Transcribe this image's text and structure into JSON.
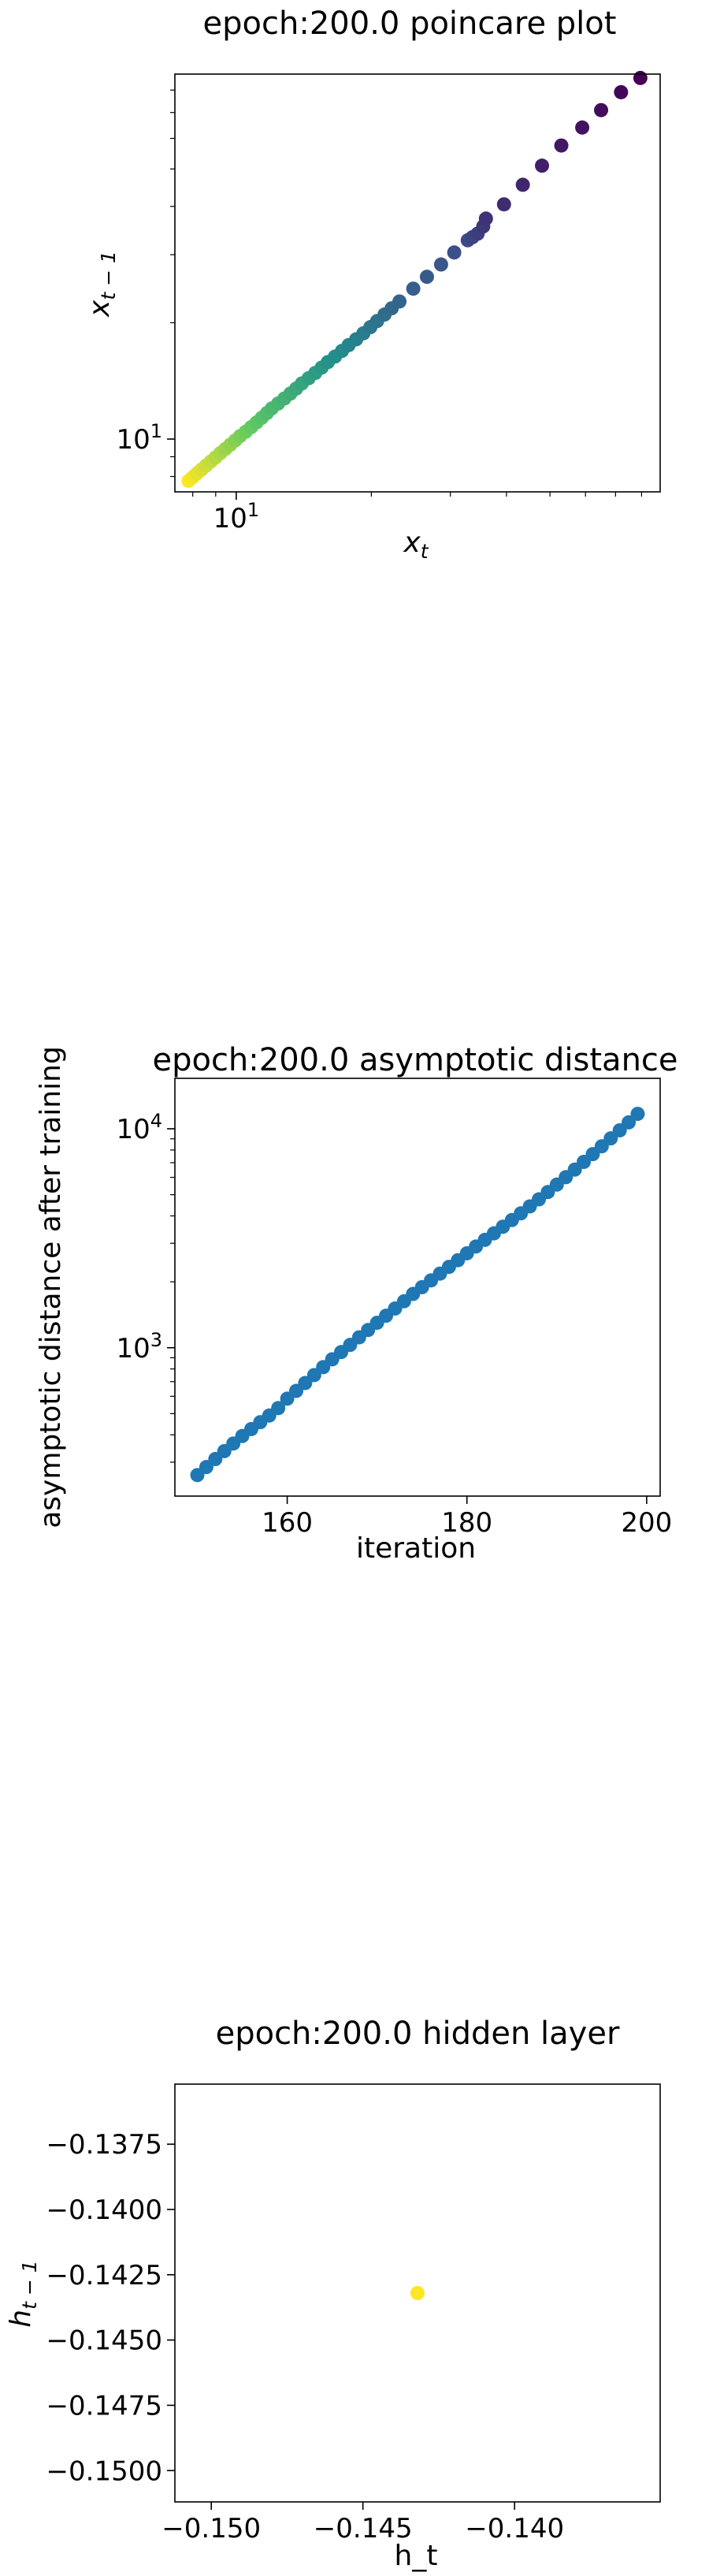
{
  "figure": {
    "background": "#ffffff"
  },
  "chart_data": [
    {
      "type": "scatter",
      "title": "epoch:200.0 poincare plot",
      "xlabel": "x_t",
      "ylabel": "x_{t-1}",
      "xscale": "log",
      "yscale": "log",
      "xlim": [
        7.3,
        88
      ],
      "ylim": [
        7.3,
        88
      ],
      "x_ticks": [
        {
          "value": 10,
          "label": "10",
          "exp": "1"
        }
      ],
      "y_ticks": [
        {
          "value": 10,
          "label": "10",
          "exp": "1"
        }
      ],
      "grid": false,
      "legend": "none",
      "colormap": "viridis",
      "points": [
        {
          "x": 7.83,
          "y": 7.8
        },
        {
          "x": 8.0,
          "y": 7.97
        },
        {
          "x": 8.18,
          "y": 8.15
        },
        {
          "x": 8.37,
          "y": 8.34
        },
        {
          "x": 8.57,
          "y": 8.54
        },
        {
          "x": 8.78,
          "y": 8.75
        },
        {
          "x": 9.0,
          "y": 8.97
        },
        {
          "x": 9.22,
          "y": 9.2
        },
        {
          "x": 9.46,
          "y": 9.43
        },
        {
          "x": 9.7,
          "y": 9.67
        },
        {
          "x": 9.95,
          "y": 9.92
        },
        {
          "x": 10.2,
          "y": 10.18
        },
        {
          "x": 10.5,
          "y": 10.45
        },
        {
          "x": 10.8,
          "y": 10.74
        },
        {
          "x": 11.1,
          "y": 11.04
        },
        {
          "x": 11.4,
          "y": 11.35
        },
        {
          "x": 11.7,
          "y": 11.67
        },
        {
          "x": 12.0,
          "y": 12.0
        },
        {
          "x": 12.4,
          "y": 12.36
        },
        {
          "x": 12.8,
          "y": 12.73
        },
        {
          "x": 13.2,
          "y": 13.11
        },
        {
          "x": 13.6,
          "y": 13.51
        },
        {
          "x": 14.0,
          "y": 13.93
        },
        {
          "x": 14.5,
          "y": 14.37
        },
        {
          "x": 15.0,
          "y": 14.83
        },
        {
          "x": 15.5,
          "y": 15.31
        },
        {
          "x": 16.0,
          "y": 15.82
        },
        {
          "x": 16.6,
          "y": 16.35
        },
        {
          "x": 17.2,
          "y": 16.91
        },
        {
          "x": 17.8,
          "y": 17.5
        },
        {
          "x": 18.5,
          "y": 18.12
        },
        {
          "x": 19.2,
          "y": 18.78
        },
        {
          "x": 19.9,
          "y": 19.48
        },
        {
          "x": 20.6,
          "y": 20.2
        },
        {
          "x": 21.4,
          "y": 21.0
        },
        {
          "x": 22.2,
          "y": 21.8
        },
        {
          "x": 23.1,
          "y": 22.7
        },
        {
          "x": 24.8,
          "y": 24.5
        },
        {
          "x": 26.6,
          "y": 26.3
        },
        {
          "x": 28.6,
          "y": 28.3
        },
        {
          "x": 30.6,
          "y": 30.4
        },
        {
          "x": 32.8,
          "y": 32.7
        },
        {
          "x": 33.6,
          "y": 33.3
        },
        {
          "x": 34.5,
          "y": 34.0
        },
        {
          "x": 35.5,
          "y": 35.5
        },
        {
          "x": 36.0,
          "y": 37.2
        },
        {
          "x": 39.5,
          "y": 40.5
        },
        {
          "x": 43.5,
          "y": 45.5
        },
        {
          "x": 48.0,
          "y": 51.0
        },
        {
          "x": 53.0,
          "y": 57.5
        },
        {
          "x": 59.0,
          "y": 64.0
        },
        {
          "x": 65.0,
          "y": 71.0
        },
        {
          "x": 72.0,
          "y": 79.0
        },
        {
          "x": 79.5,
          "y": 86.0
        }
      ]
    },
    {
      "type": "scatter",
      "title": "epoch:200.0 asymptotic distance",
      "xlabel": "iteration",
      "ylabel": "asymptotic distance after training",
      "xscale": "linear",
      "yscale": "log",
      "xlim": [
        147.5,
        201.5
      ],
      "ylim": [
        210,
        17000
      ],
      "x_ticks": [
        {
          "value": 160,
          "label": "160"
        },
        {
          "value": 180,
          "label": "180"
        },
        {
          "value": 200,
          "label": "200"
        }
      ],
      "y_ticks": [
        {
          "value": 1000,
          "label": "10",
          "exp": "3"
        },
        {
          "value": 10000,
          "label": "10",
          "exp": "4"
        }
      ],
      "grid": false,
      "legend": "none",
      "marker_color": "#1f77b4",
      "x": [
        150,
        151,
        152,
        153,
        154,
        155,
        156,
        157,
        158,
        159,
        160,
        161,
        162,
        163,
        164,
        165,
        166,
        167,
        168,
        169,
        170,
        171,
        172,
        173,
        174,
        175,
        176,
        177,
        178,
        179,
        180,
        181,
        182,
        183,
        184,
        185,
        186,
        187,
        188,
        189,
        190,
        191,
        192,
        193,
        194,
        195,
        196,
        197,
        198,
        199
      ],
      "y": [
        262,
        285,
        310,
        337,
        365,
        395,
        425,
        457,
        490,
        530,
        585,
        635,
        690,
        750,
        815,
        885,
        955,
        1030,
        1115,
        1205,
        1300,
        1400,
        1510,
        1630,
        1760,
        1890,
        2030,
        2180,
        2340,
        2510,
        2700,
        2900,
        3110,
        3330,
        3570,
        3830,
        4110,
        4420,
        4760,
        5140,
        5560,
        6010,
        6510,
        7060,
        7660,
        8320,
        9040,
        9840,
        10700,
        11700
      ]
    },
    {
      "type": "scatter",
      "title": "epoch:200.0 hidden layer",
      "xlabel": "h_t",
      "ylabel": "h_{t-1}",
      "xscale": "linear",
      "yscale": "linear",
      "xlim": [
        -0.1512,
        -0.1352
      ],
      "ylim": [
        -0.1512,
        -0.1352
      ],
      "x_ticks": [
        {
          "value": -0.15,
          "label": "−0.150"
        },
        {
          "value": -0.145,
          "label": "−0.145"
        },
        {
          "value": -0.14,
          "label": "−0.140"
        }
      ],
      "y_ticks": [
        {
          "value": -0.1375,
          "label": "−0.1375"
        },
        {
          "value": -0.14,
          "label": "−0.1400"
        },
        {
          "value": -0.1425,
          "label": "−0.1425"
        },
        {
          "value": -0.145,
          "label": "−0.1450"
        },
        {
          "value": -0.1475,
          "label": "−0.1475"
        },
        {
          "value": -0.15,
          "label": "−0.1500"
        }
      ],
      "grid": false,
      "legend": "none",
      "marker_color": "#fde725",
      "points": [
        {
          "x": -0.1432,
          "y": -0.1432
        }
      ]
    }
  ]
}
